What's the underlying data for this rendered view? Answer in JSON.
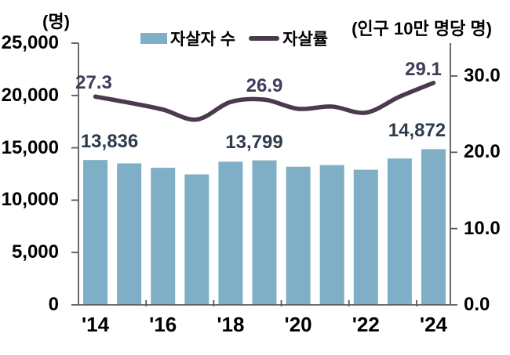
{
  "units": {
    "left": "(명)",
    "right": "(인구 10만 명당 명)"
  },
  "legend": {
    "bar_label": "자살자 수",
    "line_label": "자살률"
  },
  "colors": {
    "bar": "#7FAFC6",
    "line": "#4B3A4D",
    "bar_label": "#2E3C4D",
    "line_label": "#433B5A",
    "axis": "#595959",
    "text": "#000000",
    "background": "#FFFFFF"
  },
  "chart_data": {
    "type": "bar+line combo",
    "title": "",
    "categories": [
      "'14",
      "'15",
      "'16",
      "'17",
      "'18",
      "'19",
      "'20",
      "'21",
      "'22",
      "'23",
      "'24"
    ],
    "x_axis": {
      "labeled_ticks": [
        "'14",
        "'16",
        "'18",
        "'20",
        "'22",
        "'24"
      ],
      "label_interval": 2
    },
    "left_axis": {
      "unit": "(명)",
      "min": 0,
      "max": 25000,
      "ticks": [
        {
          "label": "0",
          "value": 0
        },
        {
          "label": "5,000",
          "value": 5000
        },
        {
          "label": "10,000",
          "value": 10000
        },
        {
          "label": "15,000",
          "value": 15000
        },
        {
          "label": "20,000",
          "value": 20000
        },
        {
          "label": "25,000",
          "value": 25000
        }
      ]
    },
    "right_axis": {
      "unit": "(인구 10만 명당 명)",
      "min": 0,
      "max": 30,
      "ticks": [
        {
          "label": "0.0",
          "value": 0
        },
        {
          "label": "10.0",
          "value": 10
        },
        {
          "label": "20.0",
          "value": 20
        },
        {
          "label": "30.0",
          "value": 30
        }
      ]
    },
    "series": [
      {
        "name": "자살자 수",
        "type": "bar",
        "axis": "left",
        "values": [
          13836,
          13513,
          13092,
          12463,
          13670,
          13799,
          13195,
          13352,
          12906,
          13978,
          14872
        ]
      },
      {
        "name": "자살률",
        "type": "line",
        "axis": "right",
        "smoothed": true,
        "values": [
          27.3,
          26.5,
          25.6,
          24.3,
          26.6,
          26.9,
          25.7,
          26.0,
          25.2,
          27.3,
          29.1
        ]
      }
    ],
    "bar_value_labels": [
      {
        "index": 0,
        "text": "13,836",
        "dx": 18
      },
      {
        "index": 5,
        "text": "13,799",
        "dx": -13
      },
      {
        "index": 10,
        "text": "14,872",
        "dx": -21
      }
    ],
    "line_value_labels": [
      {
        "index": 0,
        "text": "27.3",
        "dx": -2
      },
      {
        "index": 5,
        "text": "26.9",
        "dx": 0
      },
      {
        "index": 10,
        "text": "29.1",
        "dx": -13
      }
    ],
    "legend_position": "top-center",
    "grid": "off"
  }
}
